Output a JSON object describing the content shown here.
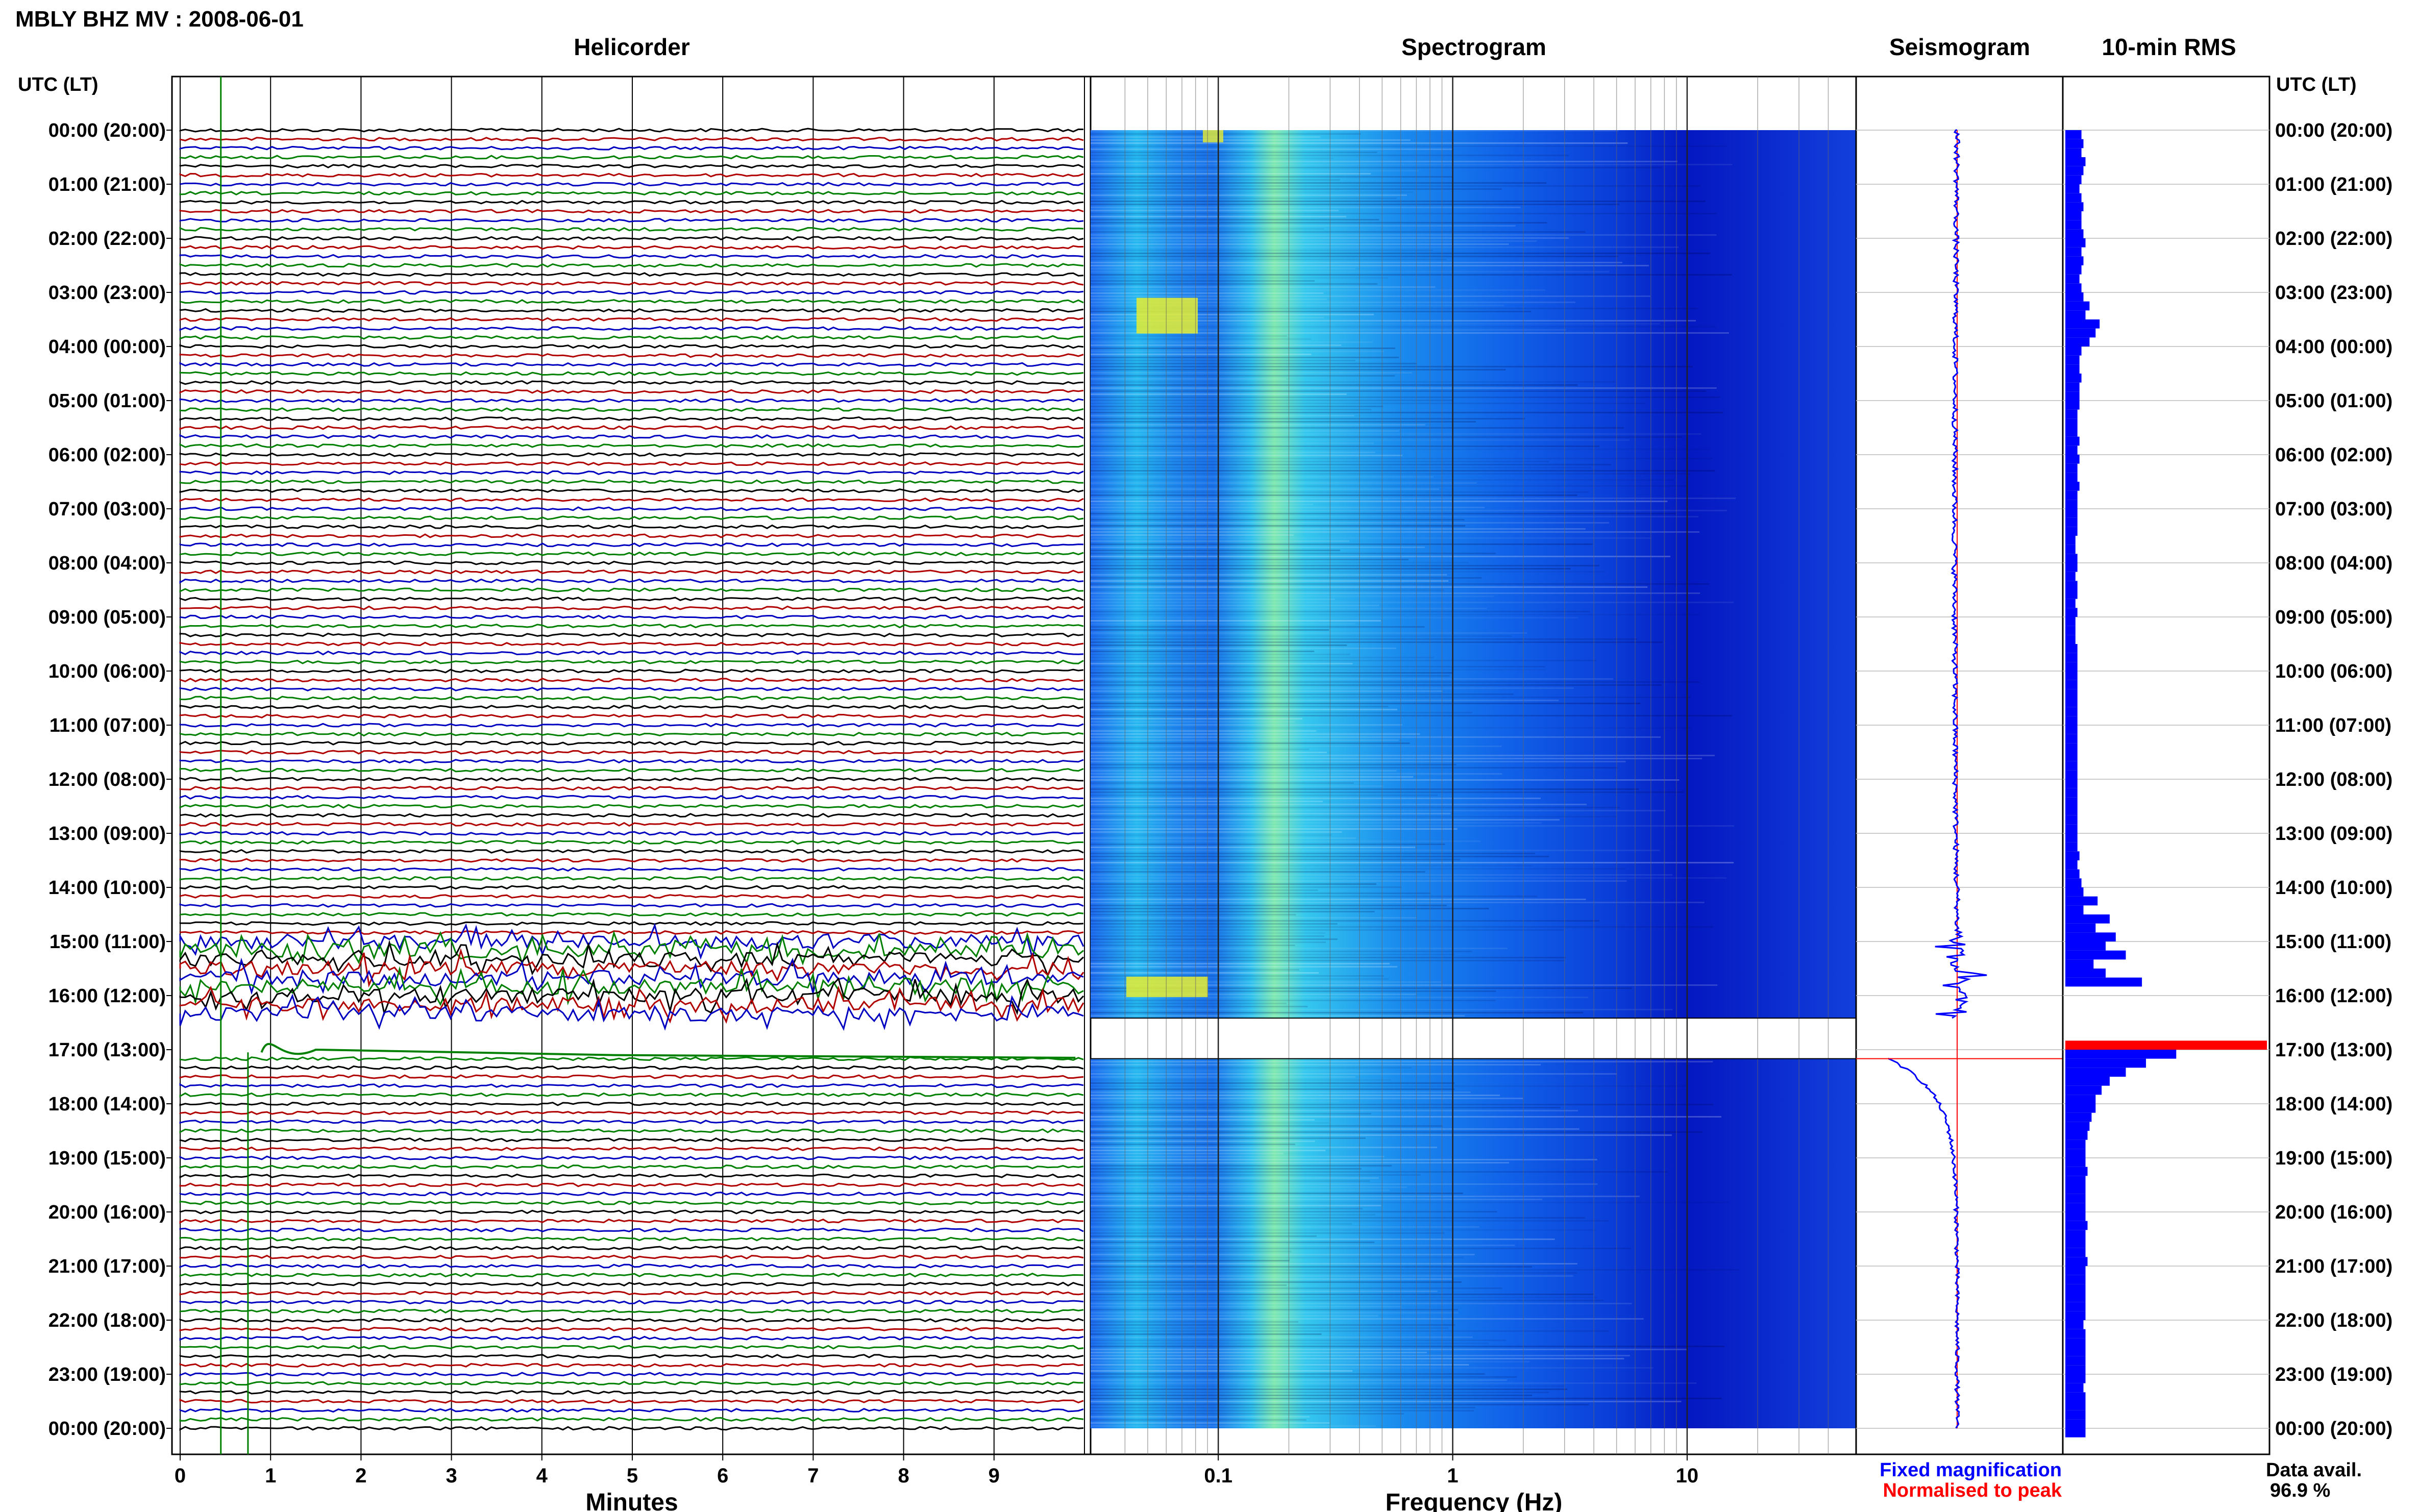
{
  "header": {
    "title": "MBLY BHZ MV : 2008-06-01"
  },
  "panels": {
    "helicorder": "Helicorder",
    "spectrogram": "Spectrogram",
    "seismogram": "Seismogram",
    "rms": "10-min RMS"
  },
  "time_axis": {
    "label": "UTC (LT)",
    "ticks": [
      "00:00 (20:00)",
      "01:00 (21:00)",
      "02:00 (22:00)",
      "03:00 (23:00)",
      "04:00 (00:00)",
      "05:00 (01:00)",
      "06:00 (02:00)",
      "07:00 (03:00)",
      "08:00 (04:00)",
      "09:00 (05:00)",
      "10:00 (06:00)",
      "11:00 (07:00)",
      "12:00 (08:00)",
      "13:00 (09:00)",
      "14:00 (10:00)",
      "15:00 (11:00)",
      "16:00 (12:00)",
      "17:00 (13:00)",
      "18:00 (14:00)",
      "19:00 (15:00)",
      "20:00 (16:00)",
      "21:00 (17:00)",
      "22:00 (18:00)",
      "23:00 (19:00)",
      "00:00 (20:00)"
    ]
  },
  "x_axes": {
    "helicorder": {
      "label": "Minutes",
      "ticks": [
        "0",
        "1",
        "2",
        "3",
        "4",
        "5",
        "6",
        "7",
        "8",
        "9"
      ]
    },
    "spectrogram": {
      "label": "Frequency (Hz)",
      "ticks": [
        "0.1",
        "1",
        "10"
      ]
    }
  },
  "legend": {
    "fixed": "Fixed magnification",
    "normalised": "Normalised to peak",
    "fixed_color": "#0000ff",
    "normalised_color": "#ff0000"
  },
  "availability": {
    "label": "Data avail.",
    "value": "96.9 %"
  },
  "chart_data": {
    "type": "heatmap",
    "helicorder_colors": [
      "#000000",
      "#b00000",
      "#0000c0",
      "#008000"
    ],
    "data_gap": {
      "start": "16:25",
      "end": "17:10"
    },
    "rms_10min_relative": [
      0.08,
      0.09,
      0.08,
      0.1,
      0.09,
      0.08,
      0.07,
      0.08,
      0.09,
      0.08,
      0.08,
      0.09,
      0.1,
      0.08,
      0.09,
      0.08,
      0.07,
      0.08,
      0.09,
      0.12,
      0.1,
      0.17,
      0.15,
      0.12,
      0.08,
      0.07,
      0.07,
      0.08,
      0.07,
      0.07,
      0.07,
      0.06,
      0.06,
      0.06,
      0.07,
      0.06,
      0.07,
      0.06,
      0.06,
      0.07,
      0.06,
      0.06,
      0.06,
      0.06,
      0.06,
      0.05,
      0.05,
      0.06,
      0.06,
      0.05,
      0.06,
      0.06,
      0.05,
      0.06,
      0.05,
      0.05,
      0.05,
      0.06,
      0.06,
      0.06,
      0.06,
      0.06,
      0.06,
      0.06,
      0.06,
      0.06,
      0.06,
      0.06,
      0.06,
      0.06,
      0.06,
      0.06,
      0.06,
      0.06,
      0.06,
      0.06,
      0.06,
      0.06,
      0.06,
      0.06,
      0.07,
      0.06,
      0.07,
      0.08,
      0.09,
      0.16,
      0.09,
      0.22,
      0.15,
      0.25,
      0.2,
      0.3,
      0.14,
      0.2,
      0.38,
      0.0,
      0.0,
      0.0,
      0.0,
      0.0,
      0.0,
      1.0,
      0.55,
      0.4,
      0.3,
      0.22,
      0.18,
      0.15,
      0.15,
      0.13,
      0.12,
      0.11,
      0.1,
      0.1,
      0.1,
      0.11,
      0.1,
      0.1,
      0.1,
      0.1,
      0.1,
      0.11,
      0.1,
      0.1,
      0.1,
      0.11,
      0.1,
      0.1,
      0.1,
      0.1,
      0.1,
      0.1,
      0.09,
      0.1,
      0.1,
      0.1,
      0.1,
      0.1,
      0.1,
      0.09,
      0.1,
      0.1,
      0.1,
      0.1,
      0.1
    ]
  }
}
